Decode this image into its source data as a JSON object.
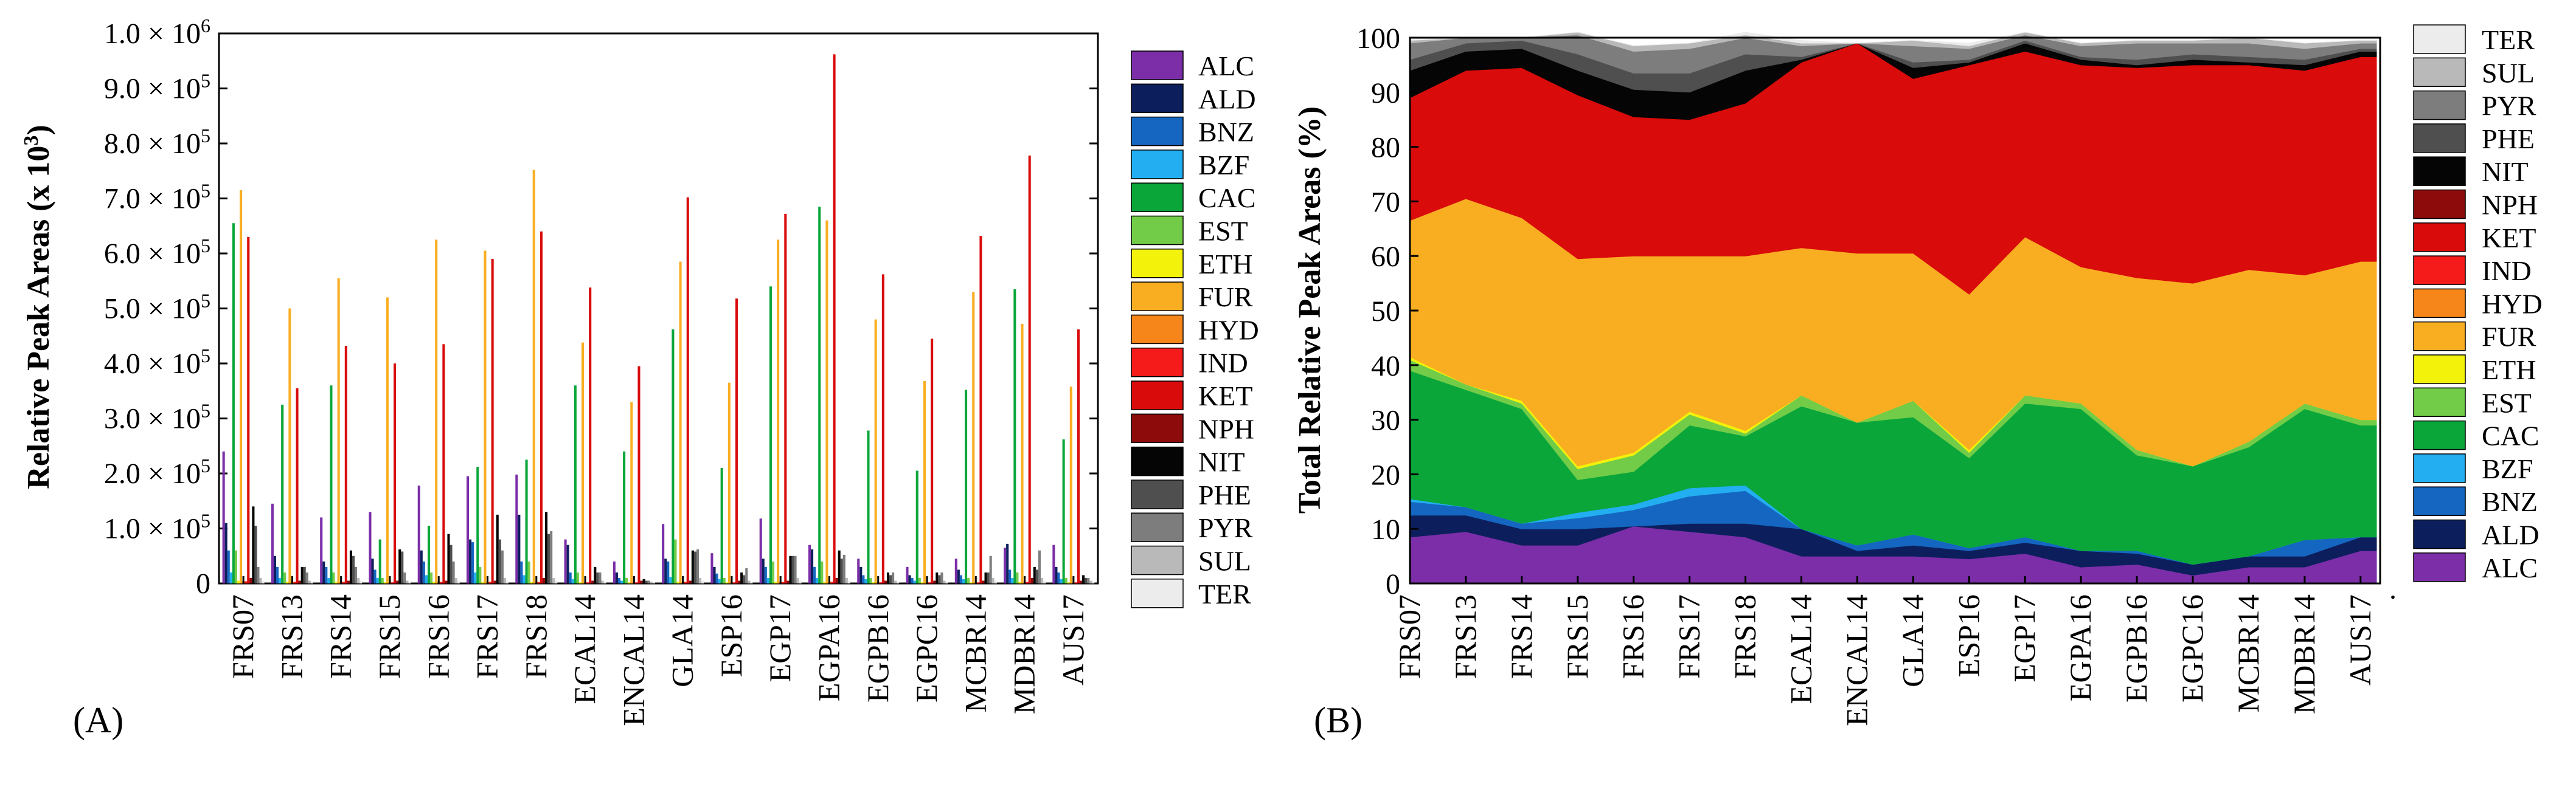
{
  "figure": {
    "panel_a_label": "(A)",
    "panel_b_label": "(B)",
    "dot_mark": "."
  },
  "chart_data": [
    {
      "type": "bar",
      "panel": "A",
      "ylabel": "Relative Peak Areas (x 10³)",
      "ylim": [
        0,
        1000000
      ],
      "yticks": [
        0,
        100000,
        200000,
        300000,
        400000,
        500000,
        600000,
        700000,
        800000,
        900000,
        1000000
      ],
      "ytick_labels": [
        {
          "text": "0",
          "mantissa": "0",
          "exp": ""
        },
        {
          "text": "1.0 × 10⁵",
          "mantissa": "1.0 × 10",
          "exp": "5"
        },
        {
          "text": "2.0 × 10⁵",
          "mantissa": "2.0 × 10",
          "exp": "5"
        },
        {
          "text": "3.0 × 10⁵",
          "mantissa": "3.0 × 10",
          "exp": "5"
        },
        {
          "text": "4.0 × 10⁵",
          "mantissa": "4.0 × 10",
          "exp": "5"
        },
        {
          "text": "5.0 × 10⁵",
          "mantissa": "5.0 × 10",
          "exp": "5"
        },
        {
          "text": "6.0 × 10⁵",
          "mantissa": "6.0 × 10",
          "exp": "5"
        },
        {
          "text": "7.0 × 10⁵",
          "mantissa": "7.0 × 10",
          "exp": "5"
        },
        {
          "text": "8.0 × 10⁵",
          "mantissa": "8.0 × 10",
          "exp": "5"
        },
        {
          "text": "9.0 × 10⁵",
          "mantissa": "9.0 × 10",
          "exp": "5"
        },
        {
          "text": "1.0 × 10⁶",
          "mantissa": "1.0 × 10",
          "exp": "6"
        }
      ],
      "categories": [
        "FRS07",
        "FRS13",
        "FRS14",
        "FRS15",
        "FRS16",
        "FRS17",
        "FRS18",
        "ECAL14",
        "ENCAL14",
        "GLA14",
        "ESP16",
        "EGP17",
        "EGPA16",
        "EGPB16",
        "EGPC16",
        "MCBR14",
        "MDBR14",
        "AUS17"
      ],
      "legend_position": "right",
      "series": [
        {
          "name": "ALC",
          "color": "#7b2ea8",
          "values": [
            240000,
            145000,
            120000,
            130000,
            178000,
            195000,
            198000,
            80000,
            40000,
            108000,
            55000,
            118000,
            70000,
            45000,
            30000,
            45000,
            65000,
            70000
          ]
        },
        {
          "name": "ALD",
          "color": "#0c1f5c",
          "values": [
            110000,
            50000,
            40000,
            45000,
            60000,
            80000,
            125000,
            70000,
            20000,
            45000,
            30000,
            45000,
            62000,
            30000,
            15000,
            25000,
            72000,
            30000
          ]
        },
        {
          "name": "BNZ",
          "color": "#1566c0",
          "values": [
            60000,
            30000,
            30000,
            25000,
            40000,
            75000,
            40000,
            20000,
            10000,
            40000,
            18000,
            30000,
            30000,
            15000,
            10000,
            15000,
            25000,
            20000
          ]
        },
        {
          "name": "BZF",
          "color": "#22aef0",
          "values": [
            20000,
            10000,
            10000,
            10000,
            15000,
            20000,
            15000,
            8000,
            5000,
            12000,
            8000,
            10000,
            10000,
            8000,
            5000,
            8000,
            10000,
            8000
          ]
        },
        {
          "name": "CAC",
          "color": "#0aa63a",
          "values": [
            655000,
            325000,
            360000,
            80000,
            105000,
            212000,
            225000,
            360000,
            240000,
            462000,
            210000,
            540000,
            685000,
            278000,
            205000,
            352000,
            535000,
            262000
          ]
        },
        {
          "name": "EST",
          "color": "#72cc47",
          "values": [
            60000,
            20000,
            20000,
            10000,
            20000,
            30000,
            40000,
            20000,
            10000,
            80000,
            10000,
            40000,
            40000,
            10000,
            10000,
            10000,
            20000,
            10000
          ]
        },
        {
          "name": "ETH",
          "color": "#f2f20a",
          "values": [
            5000,
            3000,
            3000,
            2000,
            3000,
            3000,
            3000,
            2000,
            2000,
            3000,
            2000,
            3000,
            3000,
            2000,
            2000,
            2000,
            3000,
            2000
          ]
        },
        {
          "name": "FUR",
          "color": "#f9ae22",
          "values": [
            715000,
            500000,
            555000,
            520000,
            625000,
            605000,
            752000,
            438000,
            330000,
            585000,
            365000,
            625000,
            660000,
            480000,
            368000,
            530000,
            472000,
            358000
          ]
        },
        {
          "name": "HYD",
          "color": "#f7861a",
          "values": [
            4000,
            3000,
            3000,
            2000,
            3000,
            3000,
            3000,
            2000,
            2000,
            3000,
            2000,
            3000,
            3000,
            2000,
            2000,
            2000,
            3000,
            2000
          ]
        },
        {
          "name": "IND",
          "color": "#f51b1b",
          "values": [
            4000,
            3000,
            3000,
            2000,
            3000,
            3000,
            3000,
            2000,
            2000,
            3000,
            2000,
            3000,
            3000,
            2000,
            2000,
            2000,
            3000,
            2000
          ]
        },
        {
          "name": "KET",
          "color": "#d90b0b",
          "values": [
            630000,
            355000,
            432000,
            400000,
            435000,
            590000,
            640000,
            538000,
            395000,
            702000,
            518000,
            672000,
            962000,
            562000,
            445000,
            632000,
            778000,
            462000
          ]
        },
        {
          "name": "NPH",
          "color": "#8e0b0b",
          "values": [
            10000,
            5000,
            5000,
            5000,
            5000,
            5000,
            10000,
            5000,
            5000,
            5000,
            5000,
            5000,
            10000,
            5000,
            5000,
            5000,
            10000,
            5000
          ]
        },
        {
          "name": "NIT",
          "color": "#050505",
          "values": [
            140000,
            30000,
            60000,
            62000,
            90000,
            125000,
            130000,
            30000,
            8000,
            60000,
            20000,
            50000,
            60000,
            20000,
            20000,
            20000,
            30000,
            15000
          ]
        },
        {
          "name": "PHE",
          "color": "#4f4f4f",
          "values": [
            105000,
            30000,
            50000,
            58000,
            70000,
            80000,
            90000,
            20000,
            5000,
            58000,
            15000,
            50000,
            45000,
            15000,
            15000,
            20000,
            25000,
            10000
          ]
        },
        {
          "name": "PYR",
          "color": "#7d7d7d",
          "values": [
            30000,
            20000,
            30000,
            20000,
            40000,
            60000,
            95000,
            20000,
            5000,
            62000,
            28000,
            50000,
            52000,
            20000,
            20000,
            50000,
            60000,
            10000
          ]
        },
        {
          "name": "SUL",
          "color": "#b9b9b9",
          "values": [
            10000,
            5000,
            10000,
            5000,
            10000,
            10000,
            10000,
            5000,
            3000,
            10000,
            5000,
            10000,
            10000,
            5000,
            5000,
            10000,
            10000,
            5000
          ]
        },
        {
          "name": "TER",
          "color": "#ececec",
          "values": [
            5000,
            3000,
            5000,
            3000,
            5000,
            5000,
            5000,
            3000,
            2000,
            5000,
            3000,
            5000,
            5000,
            3000,
            3000,
            5000,
            5000,
            3000
          ]
        }
      ]
    },
    {
      "type": "stacked_area",
      "panel": "B",
      "ylabel": "Total Relative Peak Areas (%)",
      "ylim": [
        0,
        100
      ],
      "yticks": [
        0,
        10,
        20,
        30,
        40,
        50,
        60,
        70,
        80,
        90,
        100
      ],
      "categories": [
        "FRS07",
        "FRS13",
        "FRS14",
        "FRS15",
        "FRS16",
        "FRS17",
        "FRS18",
        "ECAL14",
        "ENCAL14",
        "GLA14",
        "ESP16",
        "EGP17",
        "EGPA16",
        "EGPB16",
        "EGPC16",
        "MCBR14",
        "MDBR14",
        "AUS17"
      ],
      "legend_position": "right",
      "legend_order": [
        "TER",
        "SUL",
        "PYR",
        "PHE",
        "NIT",
        "NPH",
        "KET",
        "IND",
        "HYD",
        "FUR",
        "ETH",
        "EST",
        "CAC",
        "BZF",
        "BNZ",
        "ALD",
        "ALC"
      ],
      "series": [
        {
          "name": "ALC",
          "color": "#7b2ea8",
          "values": [
            8.5,
            9.5,
            7,
            7,
            10.5,
            9.5,
            8.5,
            5,
            5,
            5,
            4.5,
            5.5,
            3,
            3.5,
            1.5,
            3,
            3,
            6
          ]
        },
        {
          "name": "ALD",
          "color": "#0c1f5c",
          "values": [
            4,
            3,
            3,
            3,
            0,
            1.5,
            2.5,
            5,
            1,
            2,
            1.5,
            2,
            3,
            2,
            2,
            2,
            2,
            2.5
          ]
        },
        {
          "name": "BNZ",
          "color": "#1566c0",
          "values": [
            2.5,
            1.5,
            1,
            2,
            3,
            5,
            6,
            0,
            1,
            2,
            0.5,
            1,
            0,
            0.5,
            0,
            0,
            3,
            0
          ]
        },
        {
          "name": "BZF",
          "color": "#22aef0",
          "values": [
            0.5,
            0,
            0,
            1,
            1,
            1.5,
            1,
            0,
            0,
            0,
            0,
            0,
            0,
            0,
            0,
            0,
            0,
            0
          ]
        },
        {
          "name": "CAC",
          "color": "#0aa63a",
          "values": [
            23.5,
            21.5,
            21,
            6,
            6,
            11.5,
            9,
            22.5,
            22.5,
            21.5,
            16.5,
            24.5,
            26,
            17.5,
            18,
            20,
            24,
            20.5
          ]
        },
        {
          "name": "EST",
          "color": "#72cc47",
          "values": [
            2,
            1,
            1,
            2,
            3,
            2,
            0.5,
            2,
            0,
            3,
            1,
            1.5,
            1,
            1,
            0,
            1,
            1,
            1
          ]
        },
        {
          "name": "ETH",
          "color": "#f2f20a",
          "values": [
            0.5,
            0,
            0.5,
            0.5,
            0.5,
            0.5,
            0.5,
            0,
            0,
            0,
            0.5,
            0,
            0,
            0,
            0,
            0,
            0,
            0
          ]
        },
        {
          "name": "FUR",
          "color": "#f9ae22",
          "values": [
            25,
            34,
            33.5,
            38,
            36,
            28.5,
            32,
            27,
            31,
            27,
            28.5,
            29,
            25,
            31.5,
            33.5,
            31.5,
            23.5,
            29
          ]
        },
        {
          "name": "HYD",
          "color": "#f7861a",
          "values": [
            0,
            0,
            0,
            0,
            0,
            0,
            0,
            0,
            0,
            0,
            0,
            0,
            0,
            0,
            0,
            0,
            0,
            0
          ]
        },
        {
          "name": "IND",
          "color": "#f51b1b",
          "values": [
            0,
            0,
            0,
            0,
            0,
            0,
            0,
            0,
            0,
            0,
            0,
            0,
            0,
            0,
            0,
            0,
            0,
            0
          ]
        },
        {
          "name": "KET",
          "color": "#d90b0b",
          "values": [
            22.5,
            23.5,
            27.5,
            30,
            25.5,
            25,
            28,
            34,
            38.5,
            32,
            42,
            34,
            37,
            38.5,
            40,
            37.5,
            37.5,
            37.5
          ]
        },
        {
          "name": "NPH",
          "color": "#8e0b0b",
          "values": [
            0,
            0,
            0,
            0,
            0,
            0,
            0,
            0,
            0,
            0,
            0,
            0,
            0,
            0,
            0,
            0,
            0,
            0
          ]
        },
        {
          "name": "NIT",
          "color": "#050505",
          "values": [
            5,
            3.5,
            3.5,
            4.5,
            5,
            5,
            6,
            0.5,
            0,
            2,
            0.5,
            1.5,
            1,
            0.5,
            1,
            0.5,
            1,
            1
          ]
        },
        {
          "name": "PHE",
          "color": "#4f4f4f",
          "values": [
            2,
            1.5,
            1.5,
            3,
            3,
            3.5,
            3,
            0.5,
            0,
            1,
            0.5,
            0.5,
            0.5,
            1,
            1,
            1,
            1,
            0.5
          ]
        },
        {
          "name": "PYR",
          "color": "#7d7d7d",
          "values": [
            3,
            1,
            0.5,
            3.5,
            4,
            4.5,
            3,
            2,
            0,
            3,
            2,
            1,
            2,
            3,
            2,
            2.5,
            2,
            1
          ]
        },
        {
          "name": "SUL",
          "color": "#b9b9b9",
          "values": [
            0.5,
            0,
            0,
            0.5,
            1,
            1,
            0.5,
            0.5,
            0,
            1,
            0.5,
            0.5,
            0.5,
            0.5,
            0.5,
            1,
            1,
            0.5
          ]
        },
        {
          "name": "TER",
          "color": "#ececec",
          "values": [
            0.5,
            0,
            0,
            0,
            0,
            0,
            0.5,
            0.5,
            0,
            0,
            0.5,
            0,
            0,
            0,
            0,
            0,
            0,
            0
          ]
        }
      ]
    }
  ]
}
